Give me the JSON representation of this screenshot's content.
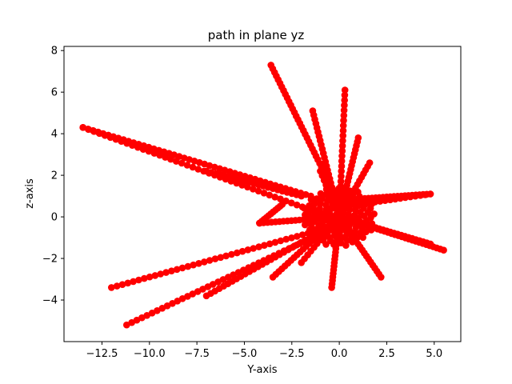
{
  "chart_data": {
    "type": "scatter",
    "title": "path in plane yz",
    "xlabel": "Y-axis",
    "ylabel": "z-axis",
    "xlim": [
      -14.5,
      6.4
    ],
    "ylim": [
      -6.0,
      8.2
    ],
    "grid": false,
    "marker_color": "#ff0000",
    "x_ticks": [
      -12.5,
      -10.0,
      -7.5,
      -5.0,
      -2.5,
      0.0,
      2.5,
      5.0
    ],
    "x_tick_labels": [
      "−12.5",
      "−10.0",
      "−7.5",
      "−5.0",
      "−2.5",
      "0.0",
      "2.5",
      "5.0"
    ],
    "y_ticks": [
      -4,
      -2,
      0,
      2,
      4,
      6,
      8
    ],
    "y_tick_labels": [
      "−4",
      "−2",
      "0",
      "2",
      "4",
      "6",
      "8"
    ],
    "segments": [
      {
        "from": [
          0.2,
          0.3
        ],
        "to": [
          -3.6,
          7.3
        ],
        "n": 40
      },
      {
        "from": [
          -1.4,
          5.1
        ],
        "to": [
          0.0,
          0.0
        ],
        "n": 25
      },
      {
        "from": [
          0.3,
          6.1
        ],
        "to": [
          0.0,
          0.0
        ],
        "n": 25
      },
      {
        "from": [
          1.0,
          3.8
        ],
        "to": [
          0.0,
          0.0
        ],
        "n": 20
      },
      {
        "from": [
          1.6,
          2.6
        ],
        "to": [
          0.0,
          0.0
        ],
        "n": 15
      },
      {
        "from": [
          -0.5,
          0.0
        ],
        "to": [
          -13.5,
          4.3
        ],
        "n": 45
      },
      {
        "from": [
          -13.5,
          4.3
        ],
        "to": [
          -1.5,
          1.0
        ],
        "n": 45
      },
      {
        "from": [
          -7.0,
          2.2
        ],
        "to": [
          -2.0,
          1.0
        ],
        "n": 20
      },
      {
        "from": [
          -0.5,
          -0.5
        ],
        "to": [
          -12.0,
          -3.4
        ],
        "n": 40
      },
      {
        "from": [
          -0.5,
          -0.6
        ],
        "to": [
          -11.2,
          -5.2
        ],
        "n": 40
      },
      {
        "from": [
          -0.2,
          -0.3
        ],
        "to": [
          -7.0,
          -3.8
        ],
        "n": 30
      },
      {
        "from": [
          -0.3,
          -0.2
        ],
        "to": [
          -3.5,
          -2.9
        ],
        "n": 20
      },
      {
        "from": [
          0.0,
          0.0
        ],
        "to": [
          -0.4,
          -3.4
        ],
        "n": 20
      },
      {
        "from": [
          0.0,
          0.0
        ],
        "to": [
          2.2,
          -2.9
        ],
        "n": 20
      },
      {
        "from": [
          0.0,
          0.0
        ],
        "to": [
          5.5,
          -1.6
        ],
        "n": 30
      },
      {
        "from": [
          0.0,
          0.0
        ],
        "to": [
          4.8,
          -1.3
        ],
        "n": 25
      },
      {
        "from": [
          0.0,
          0.8
        ],
        "to": [
          4.8,
          1.1
        ],
        "n": 25
      },
      {
        "from": [
          4.8,
          1.1
        ],
        "to": [
          -0.5,
          0.4
        ],
        "n": 20
      },
      {
        "from": [
          0.0,
          0.0
        ],
        "to": [
          -4.2,
          -0.3
        ],
        "n": 20
      },
      {
        "from": [
          -4.2,
          -0.3
        ],
        "to": [
          -3.0,
          0.6
        ],
        "n": 10
      },
      {
        "from": [
          -1.0,
          2.2
        ],
        "to": [
          0.0,
          0.0
        ],
        "n": 10
      },
      {
        "from": [
          -2.0,
          -2.2
        ],
        "to": [
          0.0,
          0.0
        ],
        "n": 12
      }
    ],
    "center_cluster": {
      "x": 0.0,
      "y": 0.0,
      "n": 120
    }
  }
}
